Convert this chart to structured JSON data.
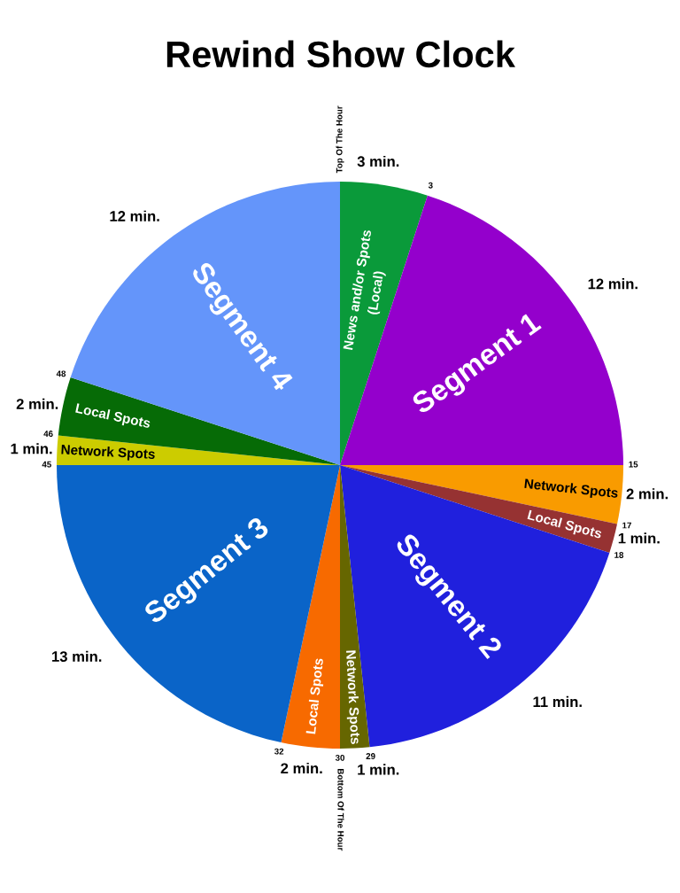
{
  "chart_data": {
    "type": "pie",
    "title": "Rewind Show Clock",
    "categories": [
      "News and/or Spots\n(Local)",
      "Segment 1",
      "Network Spots",
      "Local Spots",
      "Segment 2",
      "Network Spots",
      "Local Spots",
      "Segment 3",
      "Network Spots",
      "Local Spots",
      "Segment 4"
    ],
    "values": [
      3,
      12,
      2,
      1,
      11,
      1,
      2,
      13,
      1,
      2,
      12
    ],
    "colors": [
      "#0a9a3a",
      "#9400cc",
      "#f99b00",
      "#963232",
      "#2020dd",
      "#666600",
      "#f76a00",
      "#0a64c8",
      "#cccc00",
      "#066b06",
      "#6495fa"
    ],
    "value_labels": [
      "3 min.",
      "12 min.",
      "2 min.",
      "1 min.",
      "11 min.",
      "1 min.",
      "2 min.",
      "13 min.",
      "1 min.",
      "2 min.",
      "12 min."
    ],
    "annotations": [
      "Top Of The Hour",
      "3",
      "15",
      "17",
      "18",
      "29",
      "30",
      "32",
      "45",
      "46",
      "48",
      "Bottom Of The Hour"
    ]
  }
}
